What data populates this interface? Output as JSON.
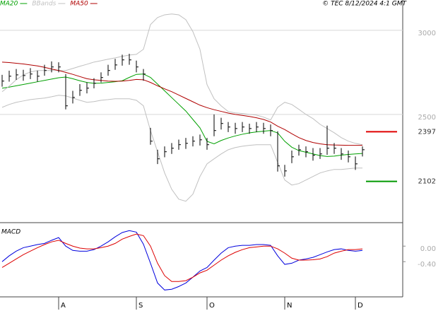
{
  "chart_data": [
    {
      "type": "ohlc",
      "source": "© TEC 8/12/2024 4:1 GMT",
      "ylim": [
        1865,
        3180
      ],
      "yticks": [
        3000,
        2500
      ],
      "grid": true,
      "high": [
        2735,
        2760,
        2770,
        2765,
        2775,
        2760,
        2795,
        2815,
        2810,
        2740,
        2640,
        2680,
        2690,
        2715,
        2750,
        2795,
        2830,
        2855,
        2860,
        2820,
        2770,
        2420,
        2290,
        2310,
        2330,
        2350,
        2360,
        2370,
        2380,
        2360,
        2500,
        2480,
        2455,
        2450,
        2455,
        2445,
        2455,
        2450,
        2440,
        2400,
        2200,
        2285,
        2320,
        2310,
        2300,
        2300,
        2433,
        2330,
        2300,
        2285,
        2250,
        2310
      ],
      "low": [
        2665,
        2695,
        2705,
        2700,
        2710,
        2695,
        2730,
        2750,
        2750,
        2530,
        2565,
        2610,
        2625,
        2655,
        2690,
        2730,
        2765,
        2790,
        2795,
        2750,
        2700,
        2320,
        2205,
        2245,
        2265,
        2290,
        2295,
        2310,
        2315,
        2290,
        2370,
        2410,
        2395,
        2385,
        2395,
        2385,
        2395,
        2385,
        2370,
        2160,
        2130,
        2210,
        2255,
        2245,
        2225,
        2235,
        2260,
        2265,
        2230,
        2215,
        2170,
        2250
      ],
      "close": [
        2698,
        2727,
        2735,
        2731,
        2740,
        2727,
        2761,
        2782,
        2782,
        2551,
        2601,
        2643,
        2656,
        2685,
        2719,
        2761,
        2794,
        2824,
        2824,
        2782,
        2740,
        2341,
        2236,
        2278,
        2299,
        2320,
        2328,
        2341,
        2349,
        2320,
        2404,
        2446,
        2425,
        2416,
        2425,
        2416,
        2425,
        2416,
        2404,
        2194,
        2164,
        2248,
        2290,
        2278,
        2257,
        2265,
        2299,
        2299,
        2265,
        2248,
        2206,
        2290
      ],
      "bar_color": "#000000",
      "series": [
        {
          "name": "MA20",
          "color": "#00a000",
          "values": [
            2656,
            2662,
            2670,
            2678,
            2686,
            2694,
            2702,
            2710,
            2718,
            2722,
            2712,
            2700,
            2690,
            2685,
            2686,
            2690,
            2694,
            2700,
            2720,
            2738,
            2740,
            2720,
            2680,
            2640,
            2600,
            2560,
            2520,
            2470,
            2420,
            2340,
            2325,
            2345,
            2360,
            2372,
            2382,
            2390,
            2396,
            2400,
            2404,
            2390,
            2340,
            2305,
            2285,
            2275,
            2265,
            2255,
            2250,
            2252,
            2258,
            2262,
            2265,
            2268
          ]
        },
        {
          "name": "BBands",
          "color": "#c0c0c0",
          "values": [
            2635,
            2668,
            2706,
            2735,
            2752,
            2761,
            2761,
            2761,
            2761,
            2761,
            2773,
            2786,
            2798,
            2811,
            2819,
            2828,
            2836,
            2845,
            2853,
            2857,
            2887,
            3034,
            3076,
            3092,
            3097,
            3092,
            3063,
            2992,
            2887,
            2677,
            2593,
            2551,
            2517,
            2509,
            2505,
            2500,
            2496,
            2484,
            2467,
            2542,
            2572,
            2559,
            2530,
            2500,
            2475,
            2441,
            2416,
            2391,
            2362,
            2341,
            2328,
            2320
          ],
          "lower": [
            2542,
            2559,
            2572,
            2580,
            2588,
            2593,
            2597,
            2605,
            2614,
            2610,
            2597,
            2584,
            2572,
            2576,
            2584,
            2588,
            2593,
            2593,
            2593,
            2584,
            2551,
            2404,
            2278,
            2152,
            2055,
            1996,
            1984,
            2026,
            2131,
            2206,
            2236,
            2265,
            2290,
            2303,
            2311,
            2316,
            2320,
            2320,
            2320,
            2215,
            2110,
            2080,
            2089,
            2110,
            2131,
            2152,
            2164,
            2173,
            2173,
            2177,
            2181,
            2181
          ]
        },
        {
          "name": "MA50",
          "color": "#b00000",
          "values": [
            2811,
            2808,
            2804,
            2800,
            2794,
            2788,
            2780,
            2770,
            2761,
            2750,
            2738,
            2725,
            2712,
            2706,
            2702,
            2698,
            2697,
            2698,
            2702,
            2708,
            2706,
            2690,
            2670,
            2652,
            2635,
            2615,
            2595,
            2575,
            2555,
            2540,
            2528,
            2518,
            2508,
            2500,
            2494,
            2488,
            2480,
            2470,
            2455,
            2430,
            2410,
            2385,
            2362,
            2345,
            2333,
            2325,
            2320,
            2318,
            2317,
            2316,
            2316,
            2316
          ]
        }
      ],
      "levels": [
        {
          "value": 2397,
          "color": "#e00000"
        },
        {
          "value": 2102,
          "color": "#009900"
        }
      ]
    },
    {
      "type": "line",
      "title": "MACD",
      "categories": [
        null,
        null,
        null,
        null,
        null,
        null,
        null,
        null,
        "A",
        null,
        null,
        null,
        null,
        null,
        null,
        null,
        null,
        null,
        null,
        "S",
        null,
        null,
        null,
        null,
        null,
        null,
        null,
        null,
        null,
        "O",
        null,
        null,
        null,
        null,
        null,
        null,
        null,
        null,
        null,
        null,
        "N",
        null,
        null,
        null,
        null,
        null,
        null,
        null,
        null,
        null,
        "D",
        null
      ],
      "ylim": [
        -1.27,
        0.55
      ],
      "yticks": [
        {
          "value": 0,
          "label": "0.00"
        },
        {
          "value": -0.4,
          "label": "-0.40"
        }
      ],
      "series": [
        {
          "color": "#0000dd",
          "values": [
            -0.4,
            -0.25,
            -0.13,
            -0.04,
            0.0,
            0.04,
            0.07,
            0.15,
            0.22,
            0.0,
            -0.11,
            -0.13,
            -0.13,
            -0.09,
            0.0,
            0.11,
            0.24,
            0.35,
            0.4,
            0.36,
            0.05,
            -0.44,
            -0.95,
            -1.13,
            -1.11,
            -1.04,
            -0.95,
            -0.8,
            -0.64,
            -0.55,
            -0.36,
            -0.18,
            -0.04,
            0.0,
            0.02,
            0.02,
            0.04,
            0.04,
            0.02,
            -0.25,
            -0.47,
            -0.44,
            -0.36,
            -0.33,
            -0.29,
            -0.22,
            -0.15,
            -0.09,
            -0.07,
            -0.11,
            -0.13,
            -0.11
          ]
        },
        {
          "color": "#dd0000",
          "values": [
            -0.55,
            -0.44,
            -0.33,
            -0.22,
            -0.13,
            -0.04,
            0.04,
            0.11,
            0.15,
            0.07,
            0.0,
            -0.05,
            -0.07,
            -0.07,
            -0.04,
            0.0,
            0.07,
            0.18,
            0.25,
            0.31,
            0.27,
            0.0,
            -0.44,
            -0.76,
            -0.91,
            -0.91,
            -0.89,
            -0.8,
            -0.69,
            -0.62,
            -0.49,
            -0.36,
            -0.25,
            -0.16,
            -0.09,
            -0.04,
            -0.02,
            0.0,
            0.0,
            -0.07,
            -0.18,
            -0.31,
            -0.36,
            -0.36,
            -0.35,
            -0.33,
            -0.27,
            -0.18,
            -0.13,
            -0.09,
            -0.09,
            -0.07
          ]
        }
      ]
    }
  ]
}
